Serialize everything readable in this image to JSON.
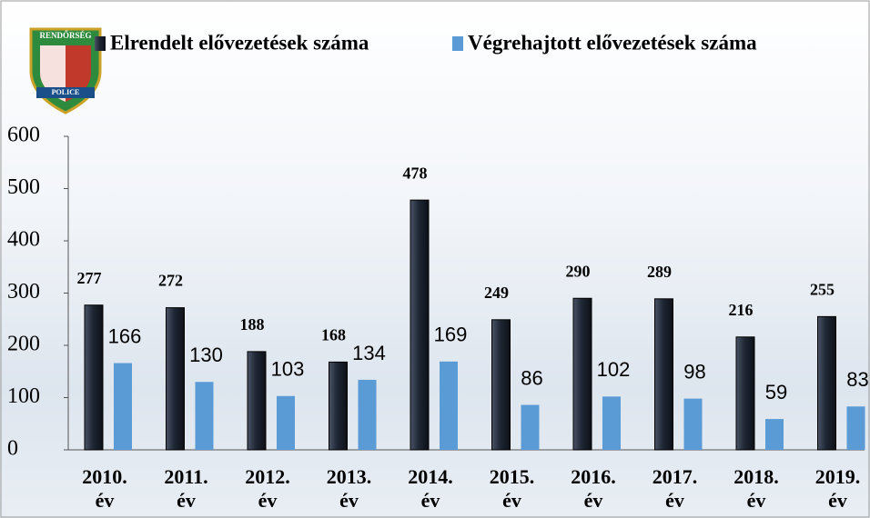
{
  "logo_text": {
    "top": "RENDŐRSÉG",
    "bottom": "POLICE"
  },
  "chart_data": {
    "type": "bar",
    "categories": [
      "2010. év",
      "2011. év",
      "2012. év",
      "2013. év",
      "2014. év",
      "2015. év",
      "2016. év",
      "2017. év",
      "2018. év",
      "2019. év"
    ],
    "series": [
      {
        "name": "Elrendelt elővezetések száma",
        "color": "#1f2735",
        "values": [
          277,
          272,
          188,
          168,
          478,
          249,
          290,
          289,
          216,
          255
        ]
      },
      {
        "name": "Végrehajtott elővezetések száma",
        "color": "#5b9bd5",
        "values": [
          166,
          130,
          103,
          134,
          169,
          86,
          102,
          98,
          59,
          83
        ]
      }
    ],
    "ylim": [
      0,
      600
    ],
    "yticks": [
      0,
      100,
      200,
      300,
      400,
      500,
      600
    ],
    "grid": false,
    "legend": "top"
  }
}
